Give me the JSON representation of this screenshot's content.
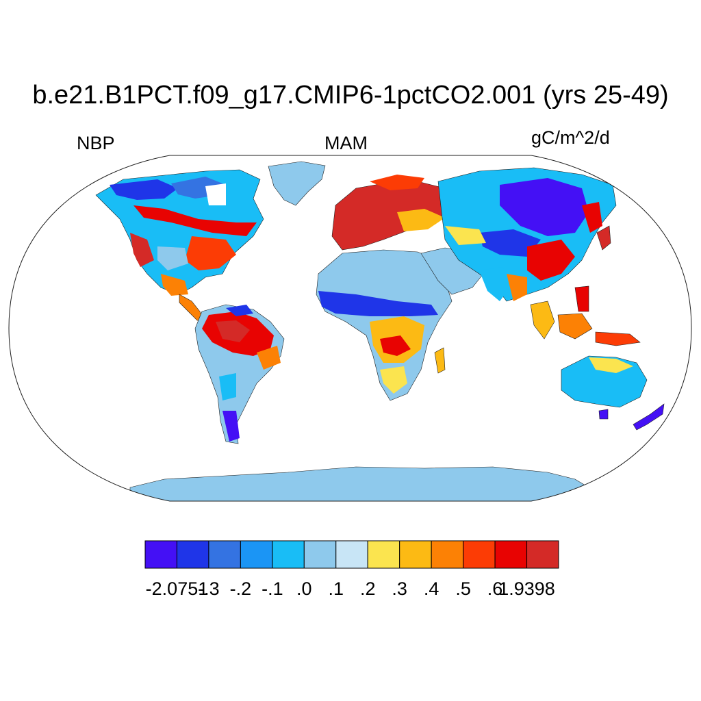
{
  "title": "b.e21.B1PCT.f09_g17.CMIP6-1pctCO2.001 (yrs 25-49)",
  "left_label": "NBP",
  "center_label": "MAM",
  "right_label": "gC/m^2/d",
  "projection": "Robinson",
  "colorbar": {
    "colors": [
      "#4410f5",
      "#1f35e8",
      "#3473e2",
      "#1b95f5",
      "#19bdf6",
      "#8ec9ec",
      "#c8e5f6",
      "#fbe44f",
      "#fcba14",
      "#fc8105",
      "#fc3c05",
      "#e80302",
      "#d42a27"
    ],
    "labels": [
      "-2.0751",
      "-.3",
      "-.2",
      "-.1",
      ".0",
      ".1",
      ".2",
      ".3",
      ".4",
      ".5",
      ".6",
      "1.9398"
    ]
  },
  "regions": [
    {
      "name": "Antarctica",
      "category": ".0 to .1",
      "color": "#8ec9ec"
    },
    {
      "name": "Greenland",
      "category": ".0 to .1",
      "color": "#8ec9ec"
    },
    {
      "name": "Europe",
      "category": ">.6",
      "color": "#d42a27"
    },
    {
      "name": "Amazon",
      "category": ">.6",
      "color": "#e80302"
    },
    {
      "name": "Sahel",
      "category": "< -.3",
      "color": "#1f35e8"
    },
    {
      "name": "Sahara",
      "category": ".0 to .1",
      "color": "#8ec9ec"
    },
    {
      "name": "Central Siberia",
      "category": "< -.3",
      "color": "#4410f5"
    },
    {
      "name": "Eastern US",
      "category": ".5 to .6",
      "color": "#fc3c05"
    },
    {
      "name": "Australia",
      "category": "-.1 to .0",
      "color": "#19bdf6"
    }
  ]
}
